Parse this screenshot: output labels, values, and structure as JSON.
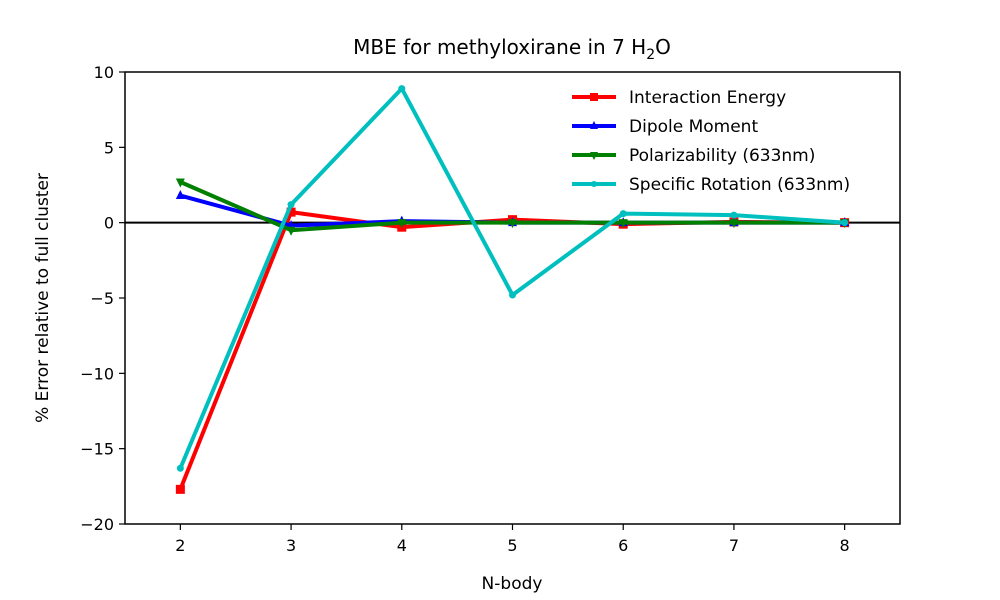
{
  "chart_data": {
    "type": "line",
    "title": "MBE for methyloxirane in 7 H",
    "title_subscript": "2",
    "title_suffix": "O",
    "xlabel": "N-body",
    "ylabel": "% Error relative to full cluster",
    "x": [
      2,
      3,
      4,
      5,
      6,
      7,
      8
    ],
    "xlim": [
      1.5,
      8.5
    ],
    "ylim": [
      -20,
      10
    ],
    "xticks": [
      "2",
      "3",
      "4",
      "5",
      "6",
      "7",
      "8"
    ],
    "yticks": [
      "10",
      "5",
      "0",
      "−5",
      "−10",
      "−15",
      "−20"
    ],
    "ytick_values": [
      10,
      5,
      0,
      -5,
      -10,
      -15,
      -20
    ],
    "zero_line": true,
    "grid": false,
    "legend_position": "top-right",
    "series": [
      {
        "name": "Interaction Energy",
        "color": "#ff0000",
        "marker": "square",
        "values": [
          -17.7,
          0.7,
          -0.3,
          0.2,
          -0.1,
          0.05,
          0.0
        ]
      },
      {
        "name": "Dipole Moment",
        "color": "#0000ff",
        "marker": "triangle-up",
        "values": [
          1.8,
          -0.2,
          0.1,
          0.0,
          0.0,
          0.0,
          0.0
        ]
      },
      {
        "name": "Polarizability (633nm)",
        "color": "#008000",
        "marker": "triangle-down",
        "values": [
          2.7,
          -0.5,
          0.0,
          0.0,
          0.0,
          0.0,
          0.0
        ]
      },
      {
        "name": "Specific Rotation (633nm)",
        "color": "#00bfbf",
        "marker": "circle",
        "values": [
          -16.3,
          1.2,
          8.9,
          -4.8,
          0.6,
          0.5,
          0.0
        ]
      }
    ]
  }
}
